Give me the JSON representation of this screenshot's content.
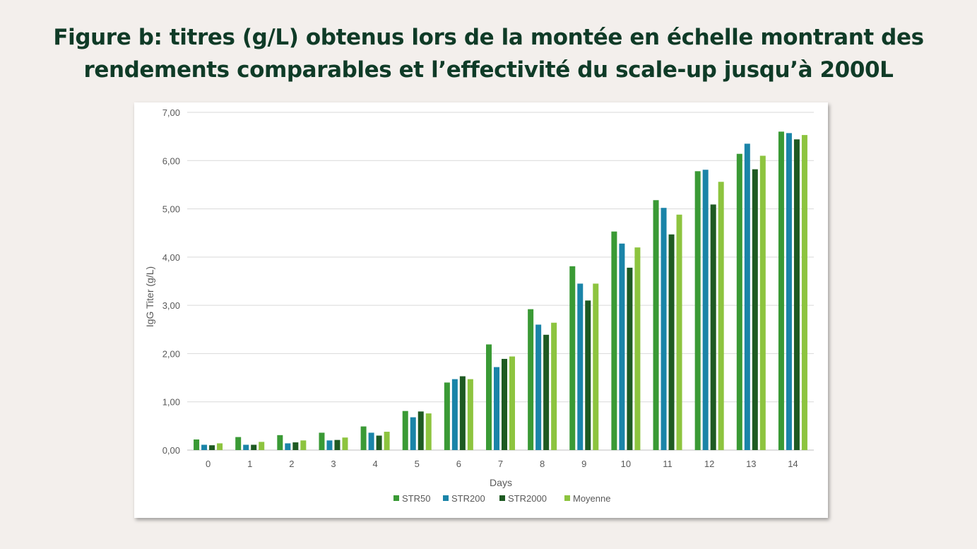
{
  "title": {
    "line1": "Figure b: titres (g/L) obtenus lors de la montée en échelle montrant des",
    "line2": "rendements comparables et l’effectivité du scale-up jusqu’à 2000L"
  },
  "chart_data": {
    "type": "bar",
    "xlabel": "Days",
    "ylabel": "IgG Titer (g/L)",
    "ylim": [
      0,
      7
    ],
    "yticks": [
      "0,00",
      "1,00",
      "2,00",
      "3,00",
      "4,00",
      "5,00",
      "6,00",
      "7,00"
    ],
    "grid": true,
    "legend_position": "bottom",
    "categories": [
      "0",
      "1",
      "2",
      "3",
      "4",
      "5",
      "6",
      "7",
      "8",
      "9",
      "10",
      "11",
      "12",
      "13",
      "14"
    ],
    "series": [
      {
        "name": "STR50",
        "color": "#3a9a35",
        "values": [
          0.22,
          0.27,
          0.31,
          0.36,
          0.49,
          0.81,
          1.4,
          2.19,
          2.92,
          3.81,
          4.53,
          5.18,
          5.78,
          6.14,
          6.6
        ]
      },
      {
        "name": "STR200",
        "color": "#1a84a8",
        "values": [
          0.11,
          0.11,
          0.14,
          0.2,
          0.36,
          0.68,
          1.47,
          1.72,
          2.6,
          3.45,
          4.28,
          5.02,
          5.81,
          6.35,
          6.57
        ]
      },
      {
        "name": "STR2000",
        "color": "#1e5a22",
        "values": [
          0.1,
          0.11,
          0.16,
          0.21,
          0.3,
          0.8,
          1.53,
          1.89,
          2.39,
          3.1,
          3.78,
          4.47,
          5.09,
          5.82,
          6.44
        ]
      },
      {
        "name": "Moyenne",
        "color": "#8dc43f",
        "values": [
          0.14,
          0.17,
          0.2,
          0.26,
          0.38,
          0.76,
          1.47,
          1.94,
          2.64,
          3.45,
          4.2,
          4.88,
          5.56,
          6.1,
          6.53
        ]
      }
    ]
  }
}
